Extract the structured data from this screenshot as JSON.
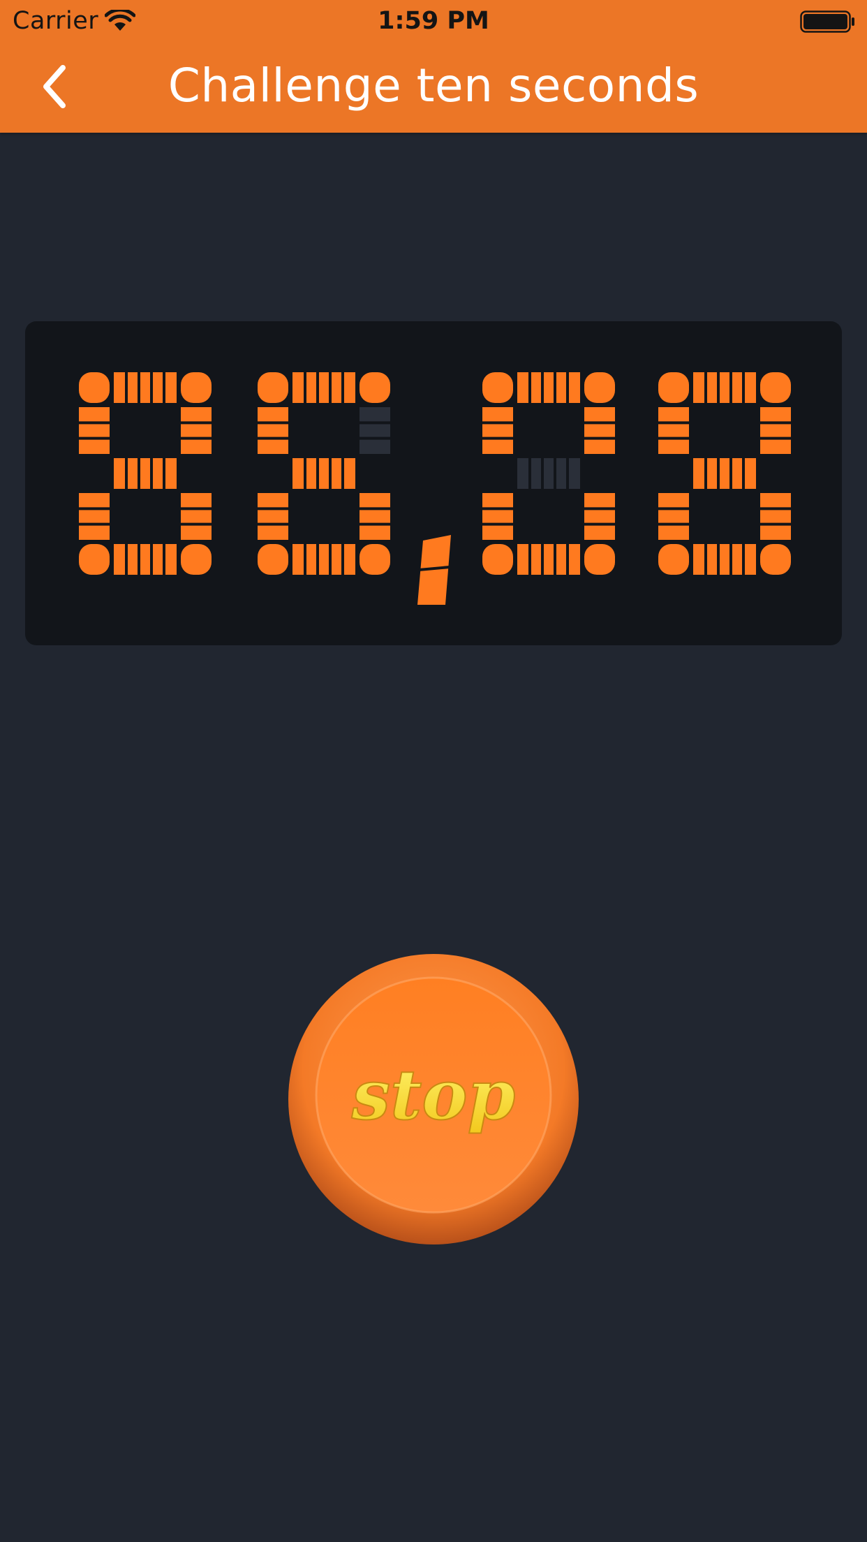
{
  "status_bar": {
    "carrier": "Carrier",
    "time": "1:59 PM"
  },
  "nav": {
    "title": "Challenge ten seconds",
    "back_icon": "chevron-left-icon"
  },
  "timer": {
    "display": "86,08"
  },
  "stop_button": {
    "label": "stop"
  },
  "colors": {
    "header": "#ec7626",
    "background": "#212630",
    "panel": "#12151a",
    "segment_on": "#ff7a1f",
    "segment_off": "#2a2f39",
    "button_text": "#f8e43c"
  }
}
